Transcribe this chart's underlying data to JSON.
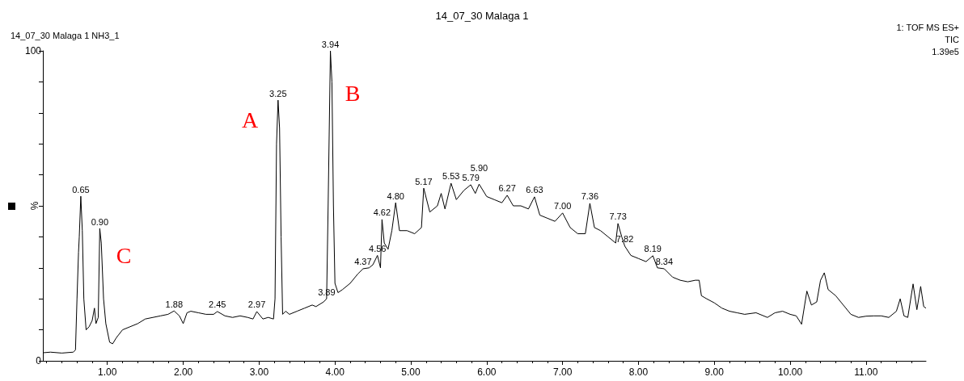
{
  "chart_data": {
    "type": "line",
    "title": "14_07_30 Malaga 1",
    "subtitle": "14_07_30 Malaga 1 NH3_1",
    "ylabel": "%",
    "xlim": [
      0.15,
      11.79
    ],
    "ylim": [
      0,
      100
    ],
    "xticks": [
      {
        "value": 1,
        "label": "1.00"
      },
      {
        "value": 2,
        "label": "2.00"
      },
      {
        "value": 3,
        "label": "3.00"
      },
      {
        "value": 4,
        "label": "4.00"
      },
      {
        "value": 5,
        "label": "5.00"
      },
      {
        "value": 6,
        "label": "6.00"
      },
      {
        "value": 7,
        "label": "7.00"
      },
      {
        "value": 8,
        "label": "8.00"
      },
      {
        "value": 9,
        "label": "9.00"
      },
      {
        "value": 10,
        "label": "10.00"
      },
      {
        "value": 11,
        "label": "11.00"
      }
    ],
    "yticks": [
      0,
      {
        "value": 10,
        "label": null
      },
      {
        "value": 20,
        "label": null
      },
      {
        "value": 30,
        "label": null
      },
      {
        "value": 40,
        "label": null
      },
      {
        "value": 50,
        "label": null
      },
      {
        "value": 60,
        "label": null
      },
      {
        "value": 70,
        "label": null
      },
      {
        "value": 80,
        "label": null
      },
      {
        "value": 90,
        "label": null
      },
      100
    ],
    "series": [
      {
        "color": "#000000",
        "x": [
          0.15,
          0.25,
          0.4,
          0.55,
          0.58,
          0.6,
          0.62,
          0.63,
          0.65,
          0.67,
          0.69,
          0.72,
          0.76,
          0.8,
          0.83,
          0.85,
          0.88,
          0.9,
          0.92,
          0.95,
          0.98,
          1.03,
          1.07,
          1.12,
          1.2,
          1.3,
          1.4,
          1.5,
          1.6,
          1.7,
          1.8,
          1.88,
          1.95,
          2.0,
          2.05,
          2.1,
          2.2,
          2.3,
          2.4,
          2.45,
          2.55,
          2.65,
          2.75,
          2.85,
          2.92,
          2.97,
          3.05,
          3.12,
          3.19,
          3.21,
          3.23,
          3.25,
          3.27,
          3.29,
          3.31,
          3.35,
          3.4,
          3.5,
          3.6,
          3.7,
          3.75,
          3.85,
          3.89,
          3.91,
          3.94,
          3.96,
          3.98,
          4.0,
          4.04,
          4.1,
          4.2,
          4.3,
          4.37,
          4.45,
          4.5,
          4.56,
          4.6,
          4.62,
          4.65,
          4.7,
          4.75,
          4.8,
          4.85,
          4.95,
          5.05,
          5.14,
          5.17,
          5.25,
          5.35,
          5.4,
          5.45,
          5.53,
          5.6,
          5.7,
          5.79,
          5.85,
          5.9,
          6.0,
          6.1,
          6.2,
          6.27,
          6.35,
          6.45,
          6.55,
          6.63,
          6.7,
          6.8,
          6.9,
          7.0,
          7.1,
          7.2,
          7.3,
          7.36,
          7.42,
          7.5,
          7.6,
          7.7,
          7.73,
          7.78,
          7.82,
          7.9,
          8.0,
          8.1,
          8.19,
          8.25,
          8.34,
          8.45,
          8.55,
          8.65,
          8.75,
          8.8,
          8.83,
          8.9,
          9.0,
          9.1,
          9.2,
          9.3,
          9.4,
          9.55,
          9.7,
          9.8,
          9.9,
          10.0,
          10.08,
          10.15,
          10.22,
          10.28,
          10.35,
          10.4,
          10.45,
          10.5,
          10.6,
          10.7,
          10.8,
          10.9,
          11.0,
          11.1,
          11.2,
          11.3,
          11.4,
          11.45,
          11.5,
          11.55,
          11.62,
          11.67,
          11.72,
          11.76,
          11.79
        ],
        "values": [
          2.6,
          2.8,
          2.5,
          2.8,
          3.5,
          20,
          35,
          40,
          53.1,
          42,
          20,
          10,
          11,
          13,
          17,
          12,
          14,
          42.7,
          38,
          20,
          12,
          6,
          5.5,
          7.5,
          10,
          11,
          12,
          13.5,
          14,
          14.5,
          15,
          16.1,
          14.5,
          12,
          15.5,
          16,
          15.5,
          15,
          15,
          15.9,
          14.5,
          14,
          14.5,
          14,
          13.5,
          15.9,
          13.5,
          14,
          13.5,
          20,
          70,
          84.1,
          75,
          40,
          15,
          16,
          15,
          16,
          17,
          18,
          17.5,
          19,
          20,
          50,
          100,
          90,
          50,
          25,
          22,
          23,
          25,
          28,
          29.7,
          30,
          31,
          34,
          30,
          45.6,
          38,
          36,
          42,
          51,
          42,
          42,
          41,
          43,
          55.7,
          48,
          50,
          54,
          49,
          57.3,
          52,
          55,
          56.8,
          54,
          57,
          53,
          52,
          51,
          53.4,
          50,
          50,
          49,
          52.9,
          47,
          46,
          45,
          47.7,
          43,
          41,
          41,
          50.8,
          43,
          42,
          40,
          38,
          44.3,
          40,
          37,
          34,
          33,
          32,
          33.9,
          30,
          29.7,
          27,
          26,
          25.5,
          26,
          26,
          21,
          20,
          18.7,
          17,
          16,
          15.5,
          15,
          15.5,
          14,
          15.5,
          16,
          15,
          14.5,
          11.8,
          22.5,
          18,
          19,
          26,
          28.4,
          23,
          21,
          18,
          15,
          14,
          14.4,
          14.5,
          14.5,
          14,
          16,
          20,
          14.5,
          14,
          24.8,
          16.5,
          24,
          17.5,
          17
        ]
      }
    ],
    "annotations": [
      {
        "text": "0.65",
        "x": 0.65,
        "y": 53.1
      },
      {
        "text": "0.90",
        "x": 0.9,
        "y": 42.7
      },
      {
        "text": "1.88",
        "x": 1.88,
        "y": 16.1
      },
      {
        "text": "2.45",
        "x": 2.45,
        "y": 15.9
      },
      {
        "text": "2.97",
        "x": 2.97,
        "y": 15.9
      },
      {
        "text": "3.25",
        "x": 3.25,
        "y": 84.1
      },
      {
        "text": "3.89",
        "x": 3.89,
        "y": 20
      },
      {
        "text": "3.94",
        "x": 3.94,
        "y": 100
      },
      {
        "text": "4.37",
        "x": 4.37,
        "y": 29.7
      },
      {
        "text": "4.56",
        "x": 4.56,
        "y": 34
      },
      {
        "text": "4.62",
        "x": 4.62,
        "y": 45.6
      },
      {
        "text": "4.80",
        "x": 4.8,
        "y": 51
      },
      {
        "text": "5.17",
        "x": 5.17,
        "y": 55.7
      },
      {
        "text": "5.53",
        "x": 5.53,
        "y": 57.3
      },
      {
        "text": "5.79",
        "x": 5.79,
        "y": 56.8
      },
      {
        "text": "5.90",
        "x": 5.9,
        "y": 57
      },
      {
        "text": "6.27",
        "x": 6.27,
        "y": 53.4
      },
      {
        "text": "6.63",
        "x": 6.63,
        "y": 52.9
      },
      {
        "text": "7.00",
        "x": 7.0,
        "y": 47.7
      },
      {
        "text": "7.36",
        "x": 7.36,
        "y": 50.8
      },
      {
        "text": "7.73",
        "x": 7.73,
        "y": 44.3
      },
      {
        "text": "7.82",
        "x": 7.82,
        "y": 37
      },
      {
        "text": "8.19",
        "x": 8.19,
        "y": 33.9
      },
      {
        "text": "8.34",
        "x": 8.34,
        "y": 29.7
      },
      "1: TOF MS ES+",
      "TIC",
      "1.39e5",
      "A",
      "B",
      "C"
    ]
  }
}
